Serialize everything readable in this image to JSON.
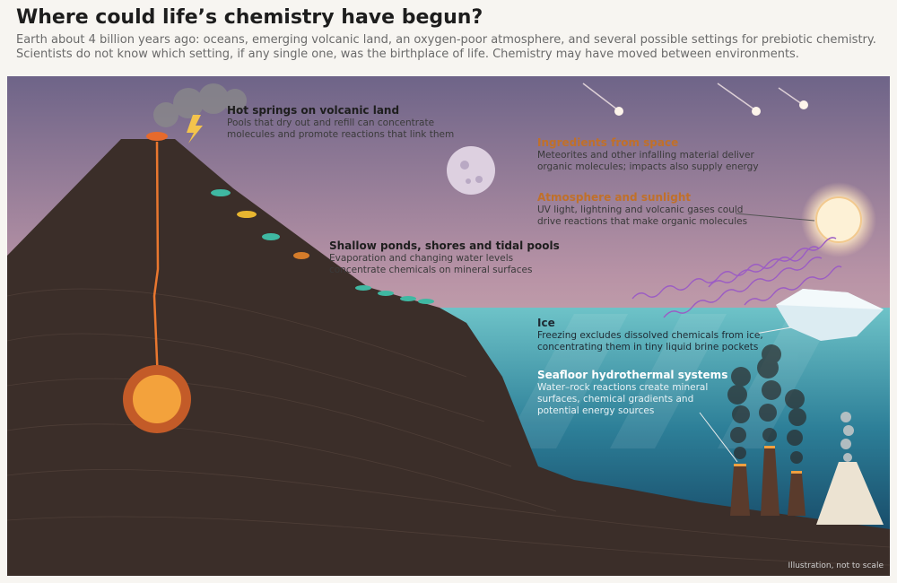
{
  "header": {
    "title": "Where could life’s chemistry have begun?",
    "subtitle": [
      "Earth about 4 billion years ago: oceans, emerging volcanic land, an oxygen-poor atmosphere, and several possible settings for prebiotic chemistry.",
      "Scientists do not know which setting, if any single one, was the birthplace of life. Chemistry may have moved between environments."
    ]
  },
  "labels": [
    {
      "title": "Hot springs on volcanic land",
      "body": [
        "Pools that dry out and refill can concentrate",
        "molecules and promote reactions that link them"
      ]
    },
    {
      "title": "Shallow ponds, shores and tidal pools",
      "body": [
        "Evaporation and changing water levels",
        "concentrate chemicals on mineral surfaces"
      ]
    },
    {
      "title": "Ingredients from space",
      "body": [
        "Meteorites and other infalling material deliver",
        "organic molecules; impacts also supply energy"
      ]
    },
    {
      "title": "Atmosphere and sunlight",
      "body": [
        "UV light, lightning and volcanic gases could",
        "drive reactions that make organic molecules"
      ]
    },
    {
      "title": "Ice",
      "body": [
        "Freezing excludes dissolved chemicals from ice,",
        "concentrating them in tiny liquid brine pockets"
      ]
    },
    {
      "title": "Seafloor hydrothermal systems",
      "body": [
        "Water–rock reactions create mineral",
        "surfaces, chemical gradients and",
        "potential energy sources"
      ]
    }
  ],
  "note": "Illustration, not to scale"
}
